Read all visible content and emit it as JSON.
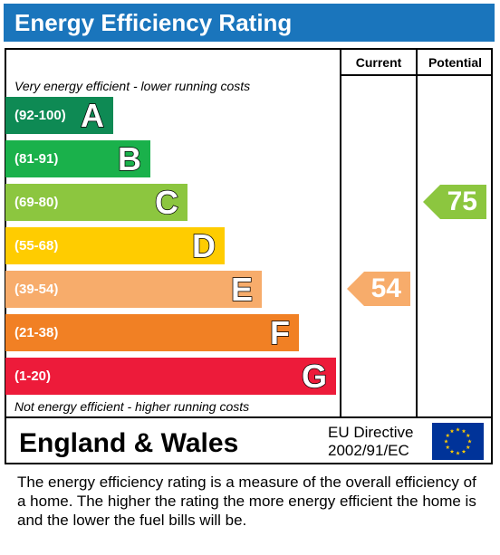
{
  "chart_data": {
    "type": "bar",
    "title": "Energy Efficiency Rating",
    "columns": [
      "Current",
      "Potential"
    ],
    "top_note": "Very energy efficient - lower running costs",
    "bottom_note": "Not energy efficient - higher running costs",
    "bands": [
      {
        "range": "(92-100)",
        "letter": "A",
        "color": "#0e8a54",
        "relative_length": 0.29
      },
      {
        "range": "(81-91)",
        "letter": "B",
        "color": "#1ab14b",
        "relative_length": 0.39
      },
      {
        "range": "(69-80)",
        "letter": "C",
        "color": "#8cc63f",
        "relative_length": 0.49
      },
      {
        "range": "(55-68)",
        "letter": "D",
        "color": "#ffcc00",
        "relative_length": 0.59
      },
      {
        "range": "(39-54)",
        "letter": "E",
        "color": "#f7ac6b",
        "relative_length": 0.69
      },
      {
        "range": "(21-38)",
        "letter": "F",
        "color": "#f18024",
        "relative_length": 0.79
      },
      {
        "range": "(1-20)",
        "letter": "G",
        "color": "#ed1b3a",
        "relative_length": 0.89
      }
    ],
    "current": {
      "value": 54,
      "band": "E",
      "color": "#f7ac6b"
    },
    "potential": {
      "value": 75,
      "band": "C",
      "color": "#8cc63f"
    }
  },
  "footer": {
    "region": "England & Wales",
    "directive_line1": "EU Directive",
    "directive_line2": "2002/91/EC",
    "flag_icon": "eu-flag-icon"
  },
  "description": "The energy efficiency rating is a measure of the overall efficiency of a home.  The higher the rating the more energy efficient the home is and the lower the fuel bills will be."
}
